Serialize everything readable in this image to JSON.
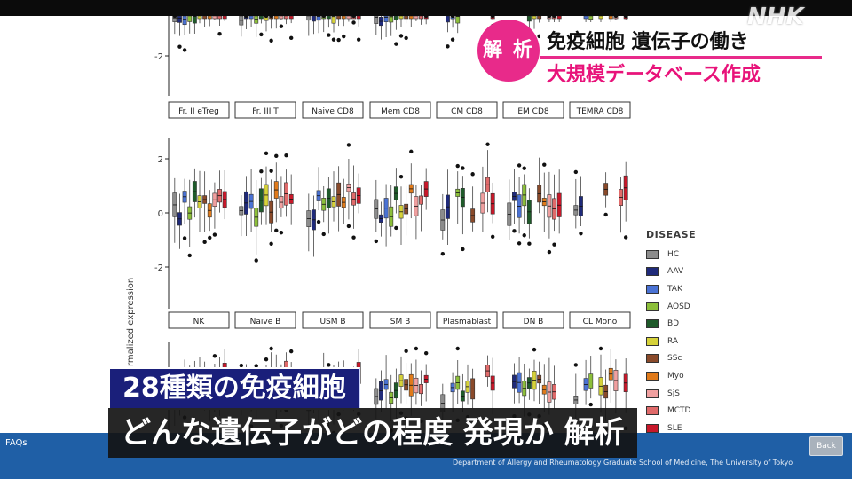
{
  "broadcast": {
    "logo": "NHK",
    "badge": "解 析",
    "headline_line1": "免疫細胞 遺伝子の働き",
    "headline_line2": "大規模データベース作成",
    "subtitle_line1": "28種類の免疫細胞",
    "subtitle_line2": "どんな遺伝子がどの程度 発現か 解析"
  },
  "footer": {
    "faqs": "FAQs",
    "back": "Back",
    "credit": "Department of Allergy and Rheumatology Graduate School of Medicine, The University of Tokyo"
  },
  "chart_data": {
    "type": "boxplot",
    "ylabel": "normalized expression",
    "ylabel_visible": "rmalized expression",
    "y_ticks_top": [
      "-2"
    ],
    "y_ticks_middle": [
      "2",
      "0",
      "-2"
    ],
    "panels_row2": [
      "Fr. II eTreg",
      "Fr. III T",
      "Naive CD8",
      "Mem CD8",
      "CM CD8",
      "EM CD8",
      "TEMRA CD8"
    ],
    "panels_row3": [
      "NK",
      "Naive B",
      "USM B",
      "SM B",
      "Plasmablast",
      "DN B",
      "CL Mono"
    ],
    "legend_title": "DISEASE",
    "legend": [
      {
        "name": "HC",
        "color": "#8c8c8c"
      },
      {
        "name": "AAV",
        "color": "#1f2a7a"
      },
      {
        "name": "TAK",
        "color": "#4a72d4"
      },
      {
        "name": "AOSD",
        "color": "#8cbf3a"
      },
      {
        "name": "BD",
        "color": "#1f5a2a"
      },
      {
        "name": "RA",
        "color": "#d6d23a"
      },
      {
        "name": "SSc",
        "color": "#8a4a2a"
      },
      {
        "name": "Myo",
        "color": "#e07a1a"
      },
      {
        "name": "SjS",
        "color": "#f0a0a0"
      },
      {
        "name": "MCTD",
        "color": "#e06a6a"
      },
      {
        "name": "SLE",
        "color": "#c8182a"
      }
    ]
  }
}
